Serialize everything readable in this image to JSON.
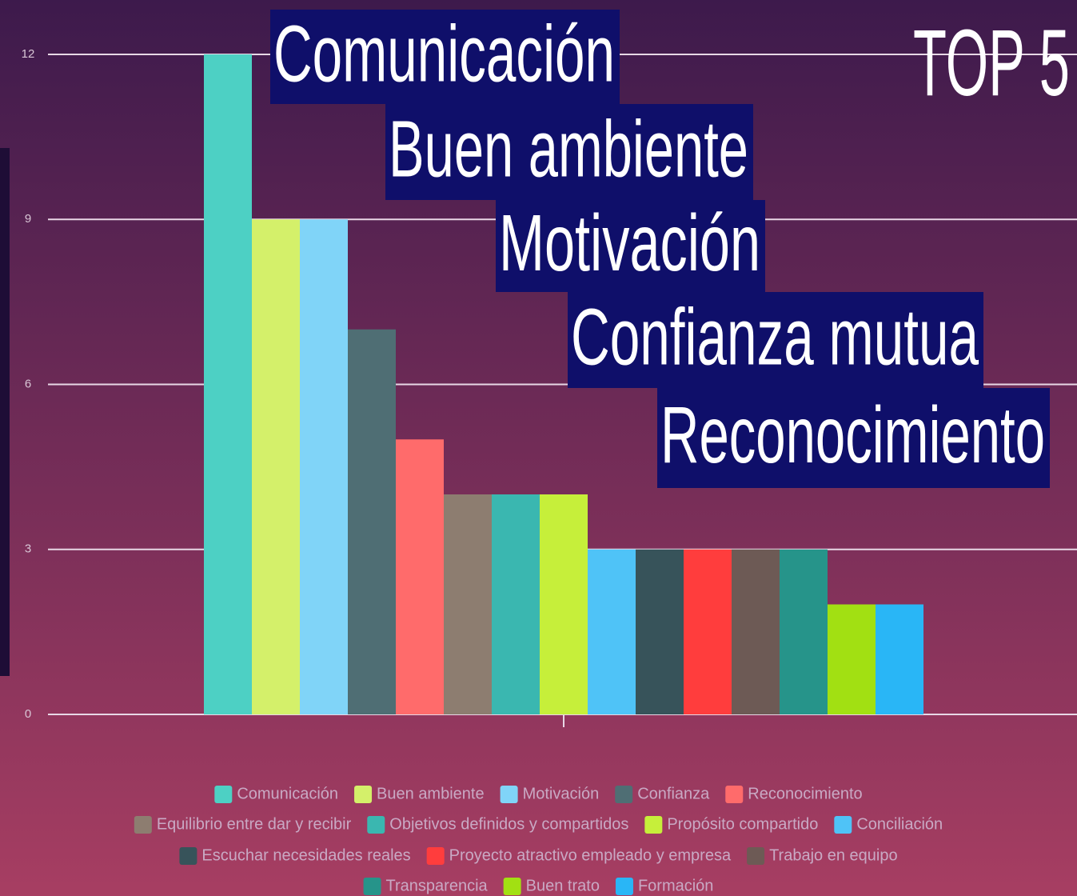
{
  "chart_data": {
    "type": "bar",
    "annotations": [
      "Comunicación",
      "Buen ambiente",
      "Motivación",
      "Confianza mutua",
      "Reconocimiento"
    ],
    "badge": "TOP 5",
    "categories": [
      null
    ],
    "series": [
      {
        "name": "Comunicación",
        "color": "#4dd0c4",
        "values": [
          12
        ]
      },
      {
        "name": "Buen ambiente",
        "color": "#d4f06a",
        "values": [
          9
        ]
      },
      {
        "name": "Motivación",
        "color": "#80d4f8",
        "values": [
          9
        ]
      },
      {
        "name": "Confianza",
        "color": "#4f6e74",
        "values": [
          7
        ]
      },
      {
        "name": "Reconocimiento",
        "color": "#ff6b6b",
        "values": [
          5
        ]
      },
      {
        "name": "Equilibrio entre dar y recibir",
        "color": "#8d7d70",
        "values": [
          4
        ]
      },
      {
        "name": "Objetivos definidos y compartidos",
        "color": "#3ab7b0",
        "values": [
          4
        ]
      },
      {
        "name": "Propósito compartido",
        "color": "#c6ef3a",
        "values": [
          4
        ]
      },
      {
        "name": "Conciliación",
        "color": "#4fc3f7",
        "values": [
          3
        ]
      },
      {
        "name": "Escuchar necesidades reales",
        "color": "#37535a",
        "values": [
          3
        ]
      },
      {
        "name": "Proyecto atractivo empleado y empresa",
        "color": "#ff3d3d",
        "values": [
          3
        ]
      },
      {
        "name": "Trabajo en equipo",
        "color": "#6d5a55",
        "values": [
          3
        ]
      },
      {
        "name": "Transparencia",
        "color": "#26948a",
        "values": [
          3
        ]
      },
      {
        "name": "Buen trato",
        "color": "#a2e012",
        "values": [
          2
        ]
      },
      {
        "name": "Formación",
        "color": "#29b6f6",
        "values": [
          2
        ]
      }
    ],
    "ylim": [
      0,
      12
    ],
    "yticks": [
      0,
      3,
      6,
      9,
      12
    ],
    "grid": true,
    "legend": "bottom"
  }
}
